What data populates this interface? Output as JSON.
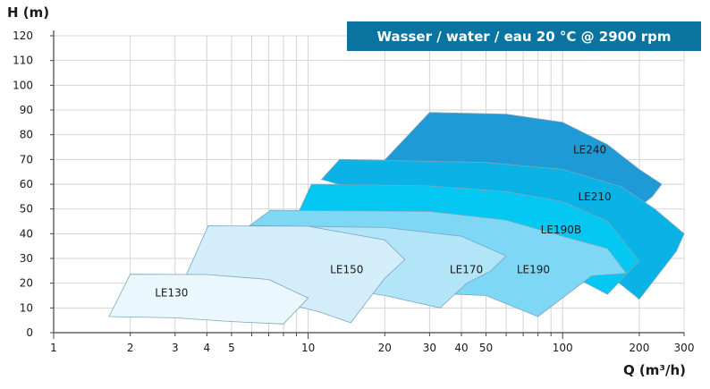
{
  "chart_data": {
    "type": "area",
    "title": "Wasser / water / eau 20 °C @ 2900 rpm",
    "xlabel": "Q (m³/h)",
    "ylabel": "H (m)",
    "x_scale": "log",
    "xlim": [
      1,
      300
    ],
    "ylim": [
      0,
      120
    ],
    "x_ticks": [
      1,
      2,
      3,
      4,
      5,
      6,
      7,
      8,
      9,
      10,
      20,
      30,
      40,
      50,
      60,
      70,
      80,
      90,
      100,
      200,
      300
    ],
    "x_tick_labels": [
      {
        "value": 1,
        "label": "1"
      },
      {
        "value": 2,
        "label": "2"
      },
      {
        "value": 3,
        "label": "3"
      },
      {
        "value": 4,
        "label": "4"
      },
      {
        "value": 5,
        "label": "5"
      },
      {
        "value": 10,
        "label": "10"
      },
      {
        "value": 20,
        "label": "20"
      },
      {
        "value": 30,
        "label": "30"
      },
      {
        "value": 40,
        "label": "40"
      },
      {
        "value": 50,
        "label": "50"
      },
      {
        "value": 100,
        "label": "100"
      },
      {
        "value": 200,
        "label": "200"
      },
      {
        "value": 300,
        "label": "300"
      }
    ],
    "y_ticks": [
      0,
      10,
      20,
      30,
      40,
      50,
      60,
      70,
      80,
      90,
      100,
      110,
      120
    ],
    "grid": true,
    "series": [
      {
        "name": "LE240",
        "color": "#1e9ad6",
        "label_at": [
          110,
          74
        ],
        "polygon": [
          [
            11.3,
            62
          ],
          [
            20,
            69.8
          ],
          [
            30,
            89
          ],
          [
            60,
            88.3
          ],
          [
            100,
            85
          ],
          [
            150,
            76
          ],
          [
            200,
            66
          ],
          [
            245,
            60
          ],
          [
            225,
            55
          ],
          [
            170,
            45
          ],
          [
            110,
            40
          ]
        ]
      },
      {
        "name": "LE210",
        "color": "#0bb2e5",
        "label_at": [
          115,
          55
        ],
        "polygon": [
          [
            11.3,
            62
          ],
          [
            13.3,
            70
          ],
          [
            50,
            68.8
          ],
          [
            100,
            66
          ],
          [
            170,
            59
          ],
          [
            230,
            50
          ],
          [
            300,
            40
          ],
          [
            280,
            33
          ],
          [
            200,
            13.5
          ],
          [
            120,
            32
          ],
          [
            80,
            36
          ]
        ]
      },
      {
        "name": "LE190B",
        "color": "#04c8f2",
        "label_at": [
          82,
          41.5
        ],
        "polygon": [
          [
            9.2,
            49
          ],
          [
            10.3,
            60
          ],
          [
            30,
            59.3
          ],
          [
            60,
            57
          ],
          [
            100,
            53
          ],
          [
            150,
            45
          ],
          [
            200,
            29
          ],
          [
            150,
            15.5
          ],
          [
            100,
            25
          ],
          [
            60,
            27
          ],
          [
            30,
            30
          ]
        ]
      },
      {
        "name": "LE190",
        "color": "#7ed7f5",
        "label_at": [
          66,
          25.5
        ],
        "polygon": [
          [
            5.5,
            41
          ],
          [
            7.1,
            49.5
          ],
          [
            30,
            49
          ],
          [
            60,
            45.5
          ],
          [
            100,
            39
          ],
          [
            150,
            34
          ],
          [
            178,
            24
          ],
          [
            130,
            23
          ],
          [
            80,
            6.5
          ],
          [
            50,
            15
          ],
          [
            30,
            16
          ]
        ]
      },
      {
        "name": "LE170",
        "color": "#b3e5f8",
        "label_at": [
          36,
          25.5
        ],
        "polygon": [
          [
            5,
            42
          ],
          [
            6,
            43.3
          ],
          [
            20,
            42.5
          ],
          [
            40,
            39
          ],
          [
            60,
            31
          ],
          [
            52,
            24.8
          ],
          [
            42,
            20
          ],
          [
            33,
            10
          ],
          [
            20,
            15
          ],
          [
            15,
            17
          ],
          [
            10,
            22
          ]
        ]
      },
      {
        "name": "LE150",
        "color": "#d3eefa",
        "label_at": [
          12.2,
          25.5
        ],
        "polygon": [
          [
            3.3,
            22.8
          ],
          [
            4.05,
            43.2
          ],
          [
            10,
            43
          ],
          [
            20,
            37.5
          ],
          [
            24,
            29.5
          ],
          [
            20,
            22
          ],
          [
            14.7,
            4
          ],
          [
            11,
            8.5
          ],
          [
            8,
            12
          ]
        ]
      },
      {
        "name": "LE130",
        "color": "#eaf7fd",
        "label_at": [
          2.5,
          16
        ],
        "polygon": [
          [
            1.65,
            6.5
          ],
          [
            2,
            23.6
          ],
          [
            4,
            23.5
          ],
          [
            7,
            21.5
          ],
          [
            10,
            14
          ],
          [
            8,
            3.5
          ],
          [
            5,
            4.5
          ],
          [
            3,
            6
          ]
        ]
      }
    ]
  }
}
